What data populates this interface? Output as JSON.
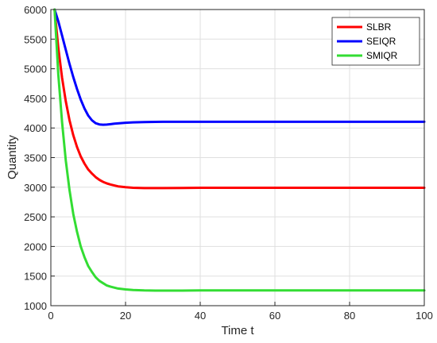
{
  "chart_data": {
    "type": "line",
    "title": "",
    "xlabel": "Time t",
    "ylabel": "Quantity",
    "xlim": [
      0,
      100
    ],
    "ylim": [
      1000,
      6000
    ],
    "x_ticks": [
      0,
      20,
      40,
      60,
      80,
      100
    ],
    "y_ticks": [
      1000,
      1500,
      2000,
      2500,
      3000,
      3500,
      4000,
      4500,
      5000,
      5500,
      6000
    ],
    "grid": true,
    "legend_position": "top-right",
    "series": [
      {
        "name": "SLBR",
        "color": "#ff0000",
        "x": [
          1,
          2,
          3,
          4,
          5,
          6,
          7,
          8,
          9,
          10,
          11,
          12,
          13,
          14,
          15,
          16,
          18,
          20,
          22,
          25,
          30,
          35,
          40,
          50,
          60,
          70,
          80,
          90,
          100
        ],
        "y": [
          6000,
          5350,
          4850,
          4450,
          4130,
          3880,
          3680,
          3520,
          3400,
          3300,
          3230,
          3170,
          3125,
          3090,
          3065,
          3045,
          3015,
          3000,
          2990,
          2985,
          2985,
          2988,
          2990,
          2990,
          2990,
          2990,
          2990,
          2990,
          2990
        ]
      },
      {
        "name": "SEIQR",
        "color": "#0000ff",
        "x": [
          1,
          2,
          3,
          4,
          5,
          6,
          7,
          8,
          9,
          10,
          11,
          12,
          13,
          14,
          15,
          16,
          17,
          18,
          20,
          22,
          25,
          28,
          30,
          35,
          40,
          50,
          60,
          70,
          80,
          90,
          100
        ],
        "y": [
          6000,
          5800,
          5560,
          5320,
          5080,
          4860,
          4660,
          4480,
          4330,
          4210,
          4130,
          4080,
          4060,
          4055,
          4058,
          4065,
          4072,
          4078,
          4088,
          4095,
          4100,
          4103,
          4105,
          4105,
          4105,
          4105,
          4105,
          4105,
          4105,
          4105,
          4105
        ]
      },
      {
        "name": "SMIQR",
        "color": "#33dd33",
        "x": [
          1,
          2,
          3,
          4,
          5,
          6,
          7,
          8,
          9,
          10,
          11,
          12,
          13,
          14,
          15,
          16,
          18,
          20,
          22,
          25,
          28,
          30,
          35,
          40,
          50,
          60,
          70,
          80,
          90,
          100
        ],
        "y": [
          6000,
          4900,
          4100,
          3450,
          2950,
          2550,
          2250,
          2000,
          1820,
          1670,
          1570,
          1480,
          1420,
          1380,
          1340,
          1320,
          1290,
          1275,
          1265,
          1258,
          1255,
          1255,
          1255,
          1258,
          1258,
          1258,
          1258,
          1258,
          1258,
          1258
        ]
      }
    ]
  }
}
